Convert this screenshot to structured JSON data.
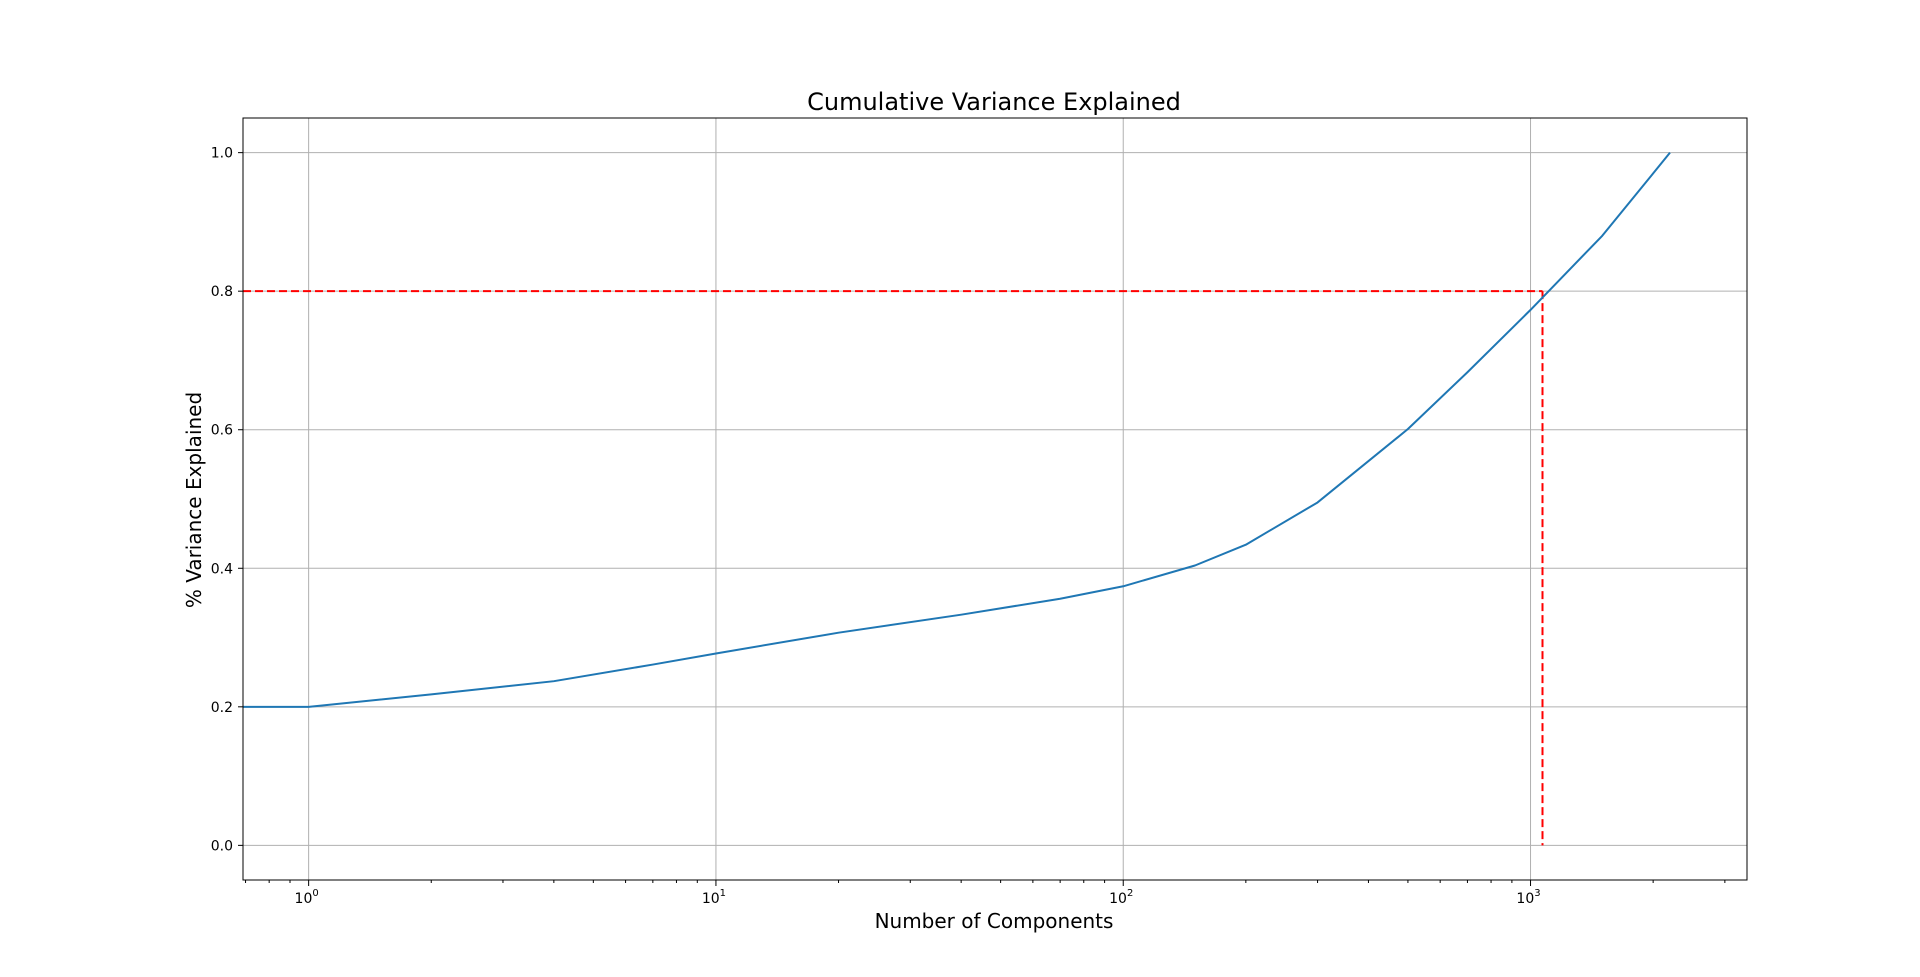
{
  "chart_data": {
    "type": "line",
    "title": "Cumulative Variance Explained",
    "xlabel": "Number of Components",
    "ylabel": "% Variance Explained",
    "xscale": "log",
    "xlim": [
      0.69,
      3400
    ],
    "ylim": [
      -0.05,
      1.05
    ],
    "grid": true,
    "legend": "none",
    "colors": {
      "line": "#1f77b4",
      "threshold": "#ff0000",
      "grid": "#b0b0b0",
      "axes": "#000000"
    },
    "x_ticks": [
      {
        "base": "10",
        "exp": "0",
        "value": 1
      },
      {
        "base": "10",
        "exp": "1",
        "value": 10
      },
      {
        "base": "10",
        "exp": "2",
        "value": 100
      },
      {
        "base": "10",
        "exp": "3",
        "value": 1000
      }
    ],
    "y_ticks": [
      {
        "label": "0.0",
        "value": 0.0
      },
      {
        "label": "0.2",
        "value": 0.2
      },
      {
        "label": "0.4",
        "value": 0.4
      },
      {
        "label": "0.6",
        "value": 0.6
      },
      {
        "label": "0.8",
        "value": 0.8
      },
      {
        "label": "1.0",
        "value": 1.0
      }
    ],
    "series": [
      {
        "x": [
          0,
          1,
          2,
          4,
          7,
          10,
          20,
          40,
          70,
          100,
          150,
          200,
          300,
          500,
          700,
          1000,
          1500,
          2000,
          2200
        ],
        "y": [
          0.2,
          0.2,
          0.218,
          0.237,
          0.261,
          0.277,
          0.307,
          0.333,
          0.356,
          0.374,
          0.404,
          0.434,
          0.495,
          0.601,
          0.683,
          0.773,
          0.88,
          0.97,
          1.0
        ]
      }
    ],
    "threshold": {
      "y": 0.8,
      "x": 1070,
      "linestyle": "dashed"
    }
  }
}
